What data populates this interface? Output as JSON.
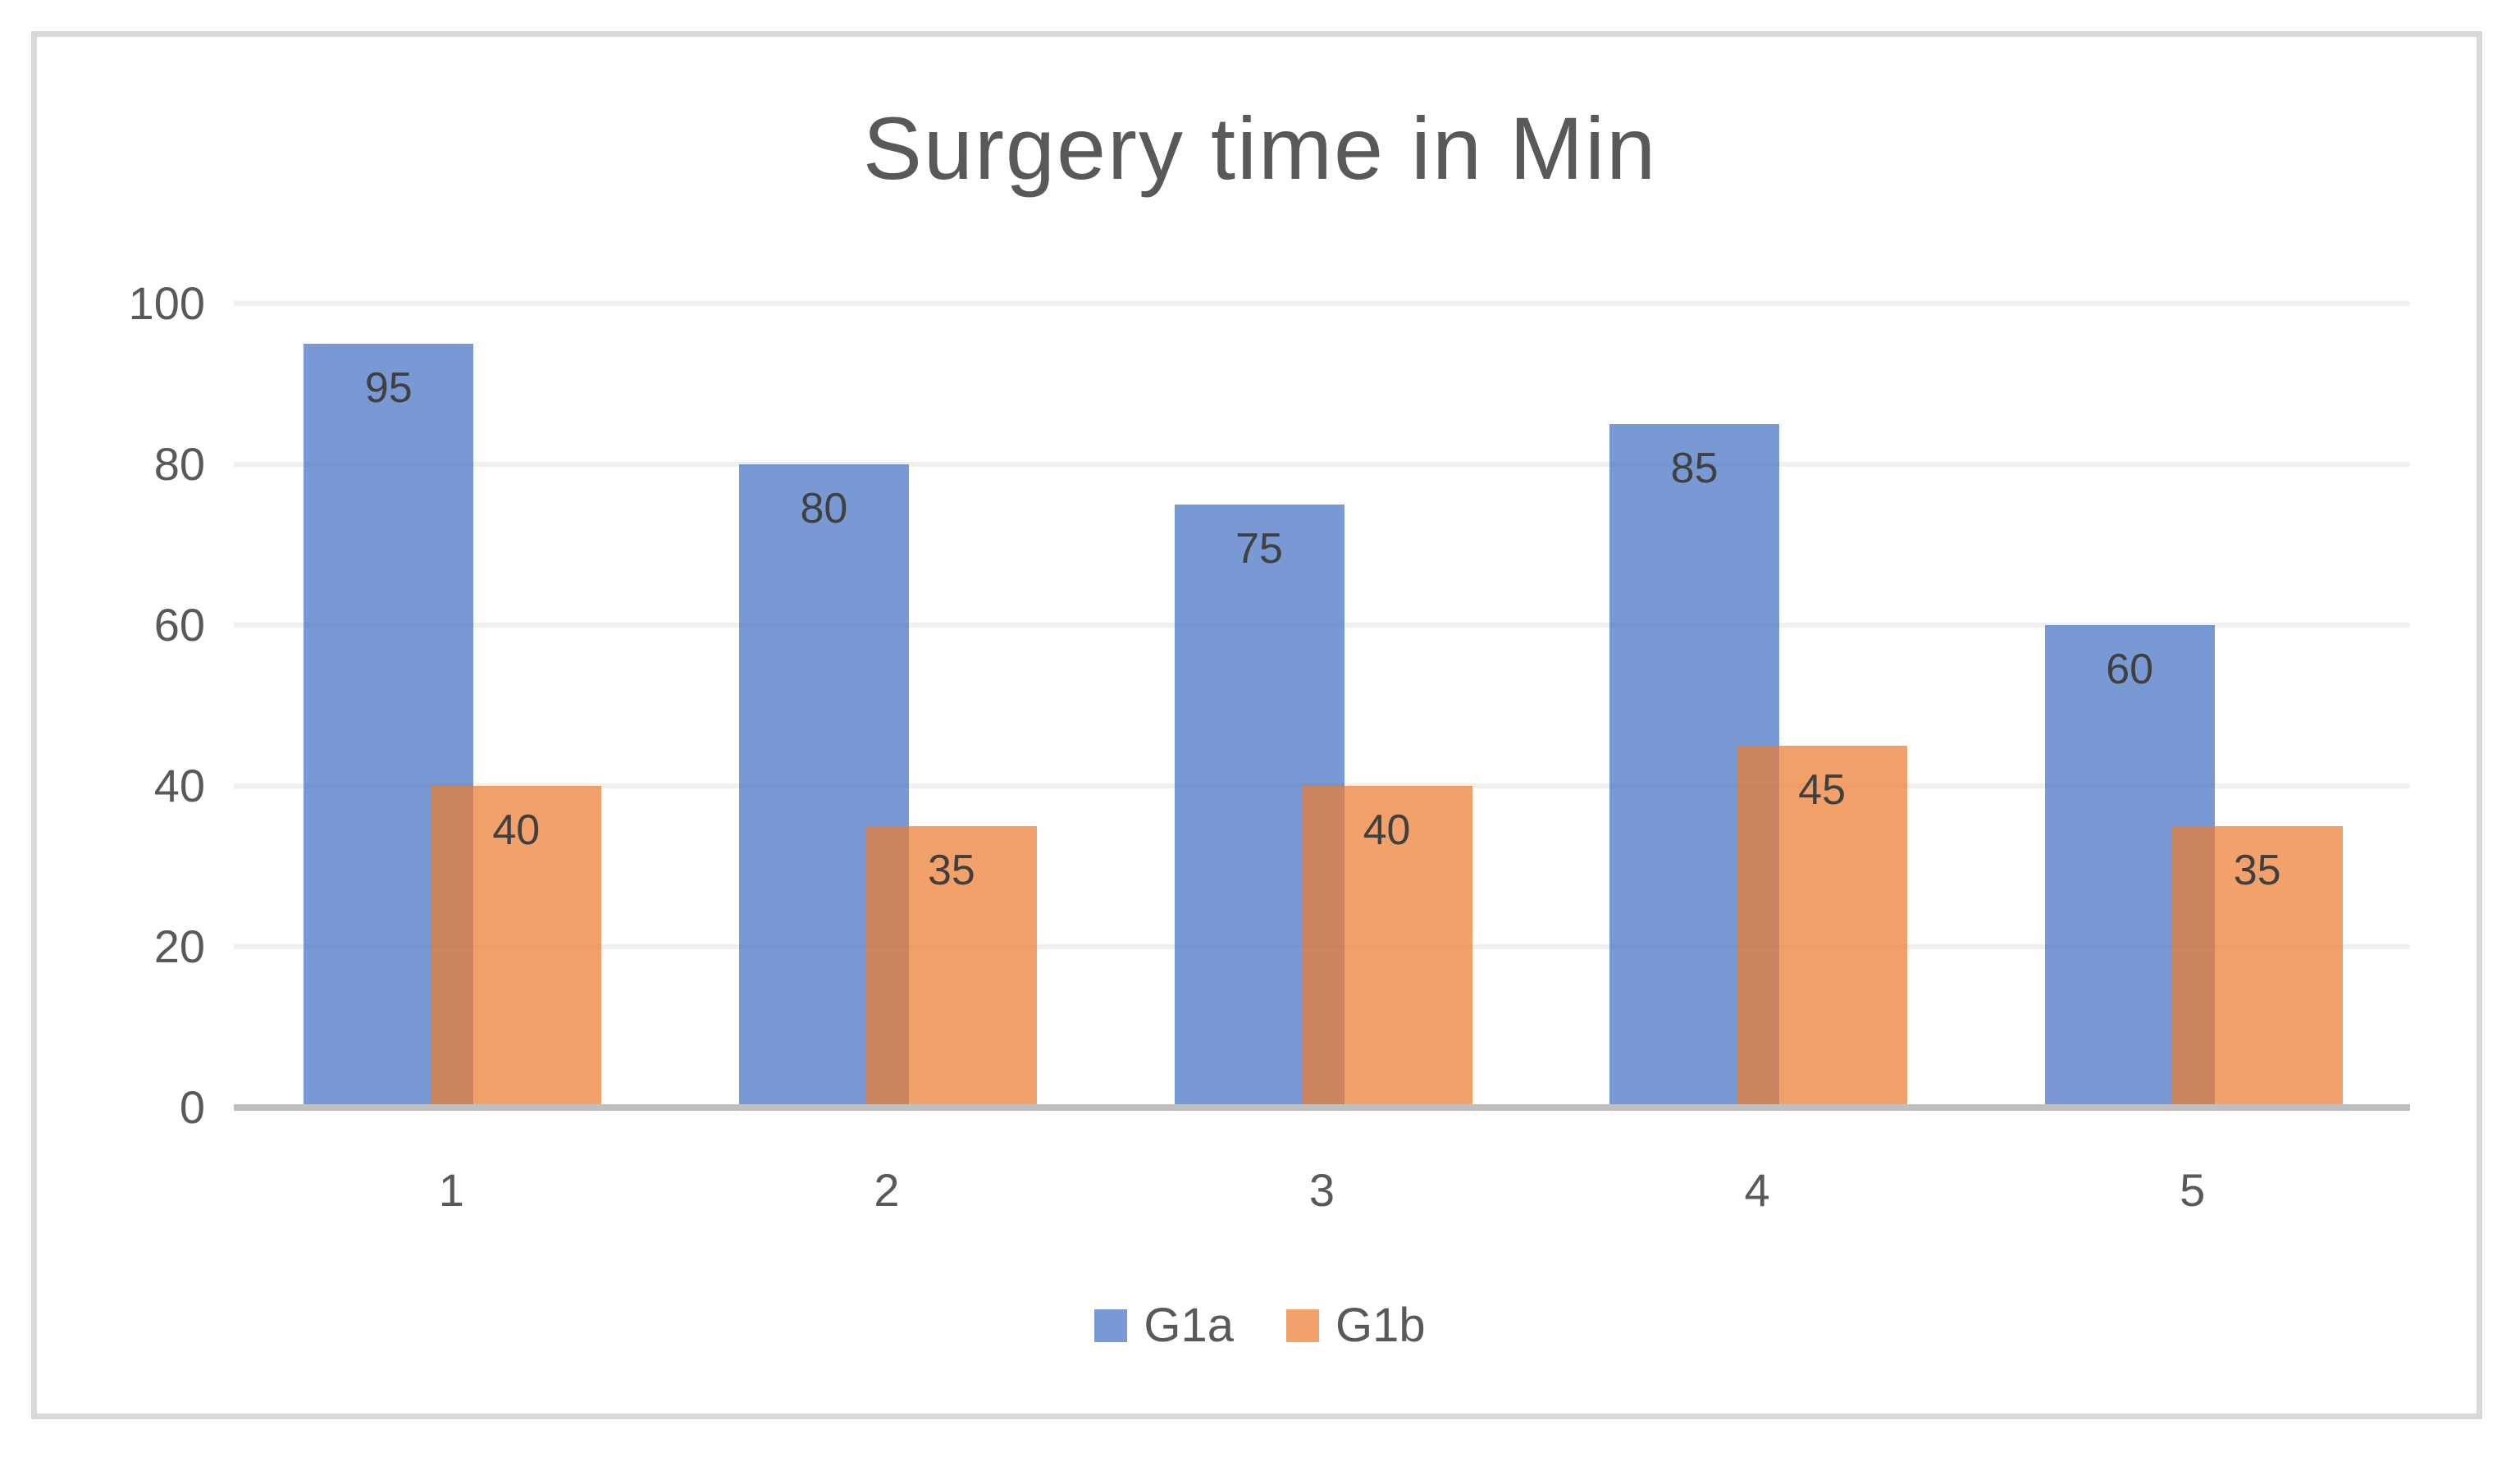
{
  "chart_data": {
    "type": "bar",
    "title": "Surgery time in Min",
    "categories": [
      "1",
      "2",
      "3",
      "4",
      "5"
    ],
    "series": [
      {
        "name": "G1a",
        "color": "#4472C4",
        "fill_opacity": 0.72,
        "values": [
          95,
          80,
          75,
          85,
          60
        ]
      },
      {
        "name": "G1b",
        "color": "#ED7D31",
        "fill_opacity": 0.72,
        "values": [
          40,
          35,
          40,
          45,
          35
        ]
      }
    ],
    "ylim": [
      0,
      100
    ],
    "yticks": [
      0,
      20,
      40,
      60,
      80,
      100
    ],
    "grid": true,
    "data_labels": true,
    "data_label_position": "inside-end",
    "legend_position": "bottom"
  },
  "colors": {
    "background": "#FFFFFF",
    "frame_border": "#D9D9D9",
    "title_text": "#595959",
    "axis_text": "#595959",
    "data_label_text": "#404040",
    "gridline": "#F0F0F0",
    "axis_line": "#BFBFBF"
  }
}
